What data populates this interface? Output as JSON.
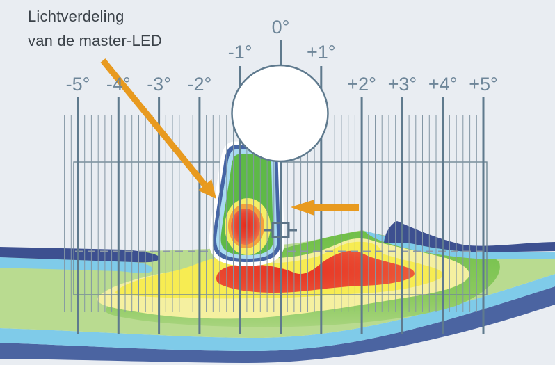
{
  "title": {
    "line1": "Lichtverdeling",
    "line2": "van de master-LED"
  },
  "scale": {
    "unit": "degrees",
    "labels": [
      "-5°",
      "-4°",
      "-3°",
      "-2°",
      "-1°",
      "0°",
      "+1°",
      "+2°",
      "+3°",
      "+4°",
      "+5°"
    ]
  },
  "colors": {
    "background": "#e9edf2",
    "tick_major": "#5f7a8d",
    "tick_minor": "#8396a4",
    "scale_label": "#6e8699",
    "title_text": "#3b4249",
    "annotation_arrow": "#e89a1f",
    "ball_stroke": "#5f7a8e",
    "beam_border_blue": "#4565a5",
    "beam_inner_lightblue": "#a9daf1",
    "beam_green": "#5eb947",
    "heat_yellow": "#f5ee66",
    "heat_orange": "#f4a03d",
    "heat_red": "#e63122",
    "road_navy": "#3d5090",
    "road_outer_blue": "#4b64a1",
    "road_lightblue": "#7fcbe9",
    "road_pale_green": "#b9db90",
    "road_green": "#6fbf47",
    "road_pale_yellow": "#f5f0a0",
    "road_yellow": "#f7ec52",
    "road_red": "#e63627"
  }
}
